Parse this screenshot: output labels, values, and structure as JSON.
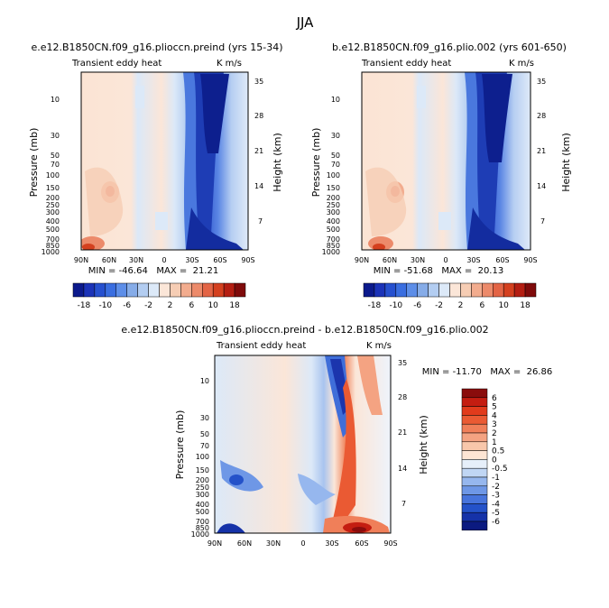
{
  "figure": {
    "title": "JJA"
  },
  "chart_data": [
    {
      "type": "heatmap",
      "title": "e.e12.B1850CN.f09_g16.plioccn.preind (yrs 15-34)",
      "subtitle_left": "Transient eddy heat",
      "units": "K m/s",
      "xlabel": "",
      "ylabel": "Pressure (mb)",
      "ylabel_right": "Height (km)",
      "x_ticks": [
        "90N",
        "60N",
        "30N",
        "0",
        "30S",
        "60S",
        "90S"
      ],
      "y_ticks": [
        "10",
        "30",
        "50",
        "70",
        "100",
        "150",
        "200",
        "250",
        "300",
        "400",
        "500",
        "700",
        "850",
        "1000"
      ],
      "y_ticks_right": [
        "35",
        "28",
        "21",
        "14",
        "7"
      ],
      "stats": "MIN = -46.64   MAX =  21.21",
      "min": -46.64,
      "max": 21.21
    },
    {
      "type": "heatmap",
      "title": "b.e12.B1850CN.f09_g16.plio.002 (yrs 601-650)",
      "subtitle_left": "Transient eddy heat",
      "units": "K m/s",
      "xlabel": "",
      "ylabel": "Pressure (mb)",
      "ylabel_right": "Height (km)",
      "x_ticks": [
        "90N",
        "60N",
        "30N",
        "0",
        "30S",
        "60S",
        "90S"
      ],
      "y_ticks": [
        "10",
        "30",
        "50",
        "70",
        "100",
        "150",
        "200",
        "250",
        "300",
        "400",
        "500",
        "700",
        "850",
        "1000"
      ],
      "y_ticks_right": [
        "35",
        "28",
        "21",
        "14",
        "7"
      ],
      "stats": "MIN = -51.68   MAX =  20.13",
      "min": -51.68,
      "max": 20.13
    },
    {
      "type": "heatmap",
      "title": "e.e12.B1850CN.f09_g16.plioccn.preind - b.e12.B1850CN.f09_g16.plio.002",
      "subtitle_left": "Transient eddy heat",
      "units": "K m/s",
      "xlabel": "",
      "ylabel": "Pressure (mb)",
      "ylabel_right": "Height (km)",
      "x_ticks": [
        "90N",
        "60N",
        "30N",
        "0",
        "30S",
        "60S",
        "90S"
      ],
      "y_ticks": [
        "10",
        "30",
        "50",
        "70",
        "100",
        "150",
        "200",
        "250",
        "300",
        "400",
        "500",
        "700",
        "850",
        "1000"
      ],
      "y_ticks_right": [
        "35",
        "28",
        "21",
        "14",
        "7"
      ],
      "stats": "MIN = -11.70   MAX =  26.86",
      "min": -11.7,
      "max": 26.86
    }
  ],
  "colorbar_top": {
    "labels": [
      "-18",
      "-10",
      "-6",
      "-2",
      "2",
      "6",
      "10",
      "18"
    ],
    "colors": [
      "#0c1a8c",
      "#1b33b8",
      "#2650cf",
      "#3a6ee0",
      "#5d8ee8",
      "#86ace8",
      "#b3cdf1",
      "#dce9f8",
      "#fbe6d8",
      "#f6cdb4",
      "#f2ac8e",
      "#ec8a6a",
      "#e36445",
      "#d4401f",
      "#b41e12",
      "#7f0b0b"
    ]
  },
  "colorbar_diff": {
    "labels": [
      "6",
      "5",
      "4",
      "3",
      "2",
      "1",
      "0.5",
      "0",
      "-0.5",
      "-1",
      "-2",
      "-3",
      "-4",
      "-5",
      "-6"
    ],
    "colors": [
      "#8a0c0c",
      "#c41d11",
      "#e13b1c",
      "#ea5a33",
      "#f07f59",
      "#f4a382",
      "#f8c7ab",
      "#fde5d4",
      "#e6effa",
      "#c0d6f4",
      "#96b7ee",
      "#6e97e6",
      "#4774dc",
      "#2452c9",
      "#1532a8",
      "#0b1a80"
    ]
  }
}
